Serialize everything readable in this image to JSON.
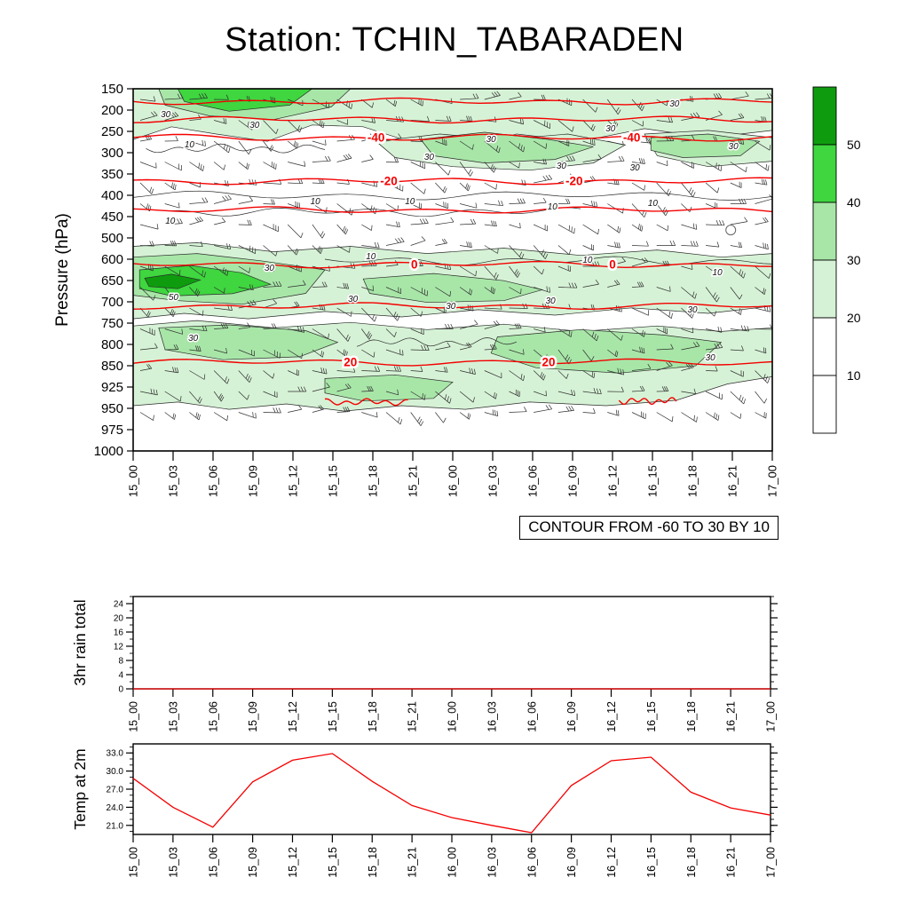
{
  "chart_data": [
    {
      "type": "heatmap",
      "title": "Station: TCHIN_TABARADEN",
      "ylabel": "Pressure (hPa)",
      "xlabel": "",
      "y_ticklabels": [
        "150",
        "200",
        "250",
        "300",
        "350",
        "400",
        "450",
        "500",
        "600",
        "650",
        "700",
        "750",
        "800",
        "850",
        "925",
        "950",
        "975",
        "1000"
      ],
      "x_ticklabels": [
        "15_00",
        "15_03",
        "15_06",
        "15_09",
        "15_12",
        "15_15",
        "15_18",
        "15_21",
        "16_00",
        "16_03",
        "16_06",
        "16_09",
        "16_12",
        "16_15",
        "16_18",
        "16_21",
        "17_00"
      ],
      "contour_note": "CONTOUR FROM -60 TO 30 BY 10",
      "red_color": "#f40000",
      "fill_levels": [
        10,
        20,
        30,
        40,
        50
      ],
      "fill_colors": {
        "20": "#d6f2d6",
        "30": "#a8e6a8",
        "40": "#3fd63f",
        "50": "#0e9c0e"
      },
      "colorbar": {
        "labels": [
          "50",
          "40",
          "30",
          "20",
          "10"
        ],
        "colors_top_to_bottom": [
          "#0e9c0e",
          "#3fd63f",
          "#a8e6a8",
          "#d6f2d6",
          "#ffffff",
          "#ffffff"
        ]
      },
      "wind_barbs": true,
      "circle_marker": {
        "u": 0.935,
        "v": 0.39
      },
      "shaded_regions": [
        {
          "level": "20",
          "pts": [
            [
              0,
              0
            ],
            [
              1,
              0
            ],
            [
              1,
              0.115
            ],
            [
              0.9,
              0.135
            ],
            [
              0.8,
              0.11
            ],
            [
              0.7,
              0.145
            ],
            [
              0.6,
              0.125
            ],
            [
              0.52,
              0.165
            ],
            [
              0.44,
              0.15
            ],
            [
              0.36,
              0.105
            ],
            [
              0.28,
              0.1
            ],
            [
              0.21,
              0.145
            ],
            [
              0.13,
              0.125
            ],
            [
              0.06,
              0.105
            ],
            [
              0,
              0.14
            ]
          ]
        },
        {
          "level": "20",
          "pts": [
            [
              0.38,
              0.145
            ],
            [
              0.48,
              0.125
            ],
            [
              0.58,
              0.14
            ],
            [
              0.68,
              0.125
            ],
            [
              0.77,
              0.155
            ],
            [
              0.72,
              0.205
            ],
            [
              0.62,
              0.225
            ],
            [
              0.5,
              0.215
            ],
            [
              0.41,
              0.19
            ]
          ]
        },
        {
          "level": "20",
          "pts": [
            [
              0.8,
              0.125
            ],
            [
              0.9,
              0.115
            ],
            [
              1,
              0.135
            ],
            [
              1,
              0.2
            ],
            [
              0.9,
              0.215
            ],
            [
              0.82,
              0.185
            ]
          ]
        },
        {
          "level": "20",
          "pts": [
            [
              0,
              0.435
            ],
            [
              0.1,
              0.425
            ],
            [
              0.22,
              0.45
            ],
            [
              0.34,
              0.435
            ],
            [
              0.46,
              0.455
            ],
            [
              0.58,
              0.44
            ],
            [
              0.7,
              0.46
            ],
            [
              0.82,
              0.445
            ],
            [
              0.92,
              0.465
            ],
            [
              1,
              0.455
            ],
            [
              1,
              0.6
            ],
            [
              0.9,
              0.62
            ],
            [
              0.78,
              0.605
            ],
            [
              0.66,
              0.625
            ],
            [
              0.54,
              0.61
            ],
            [
              0.42,
              0.63
            ],
            [
              0.3,
              0.615
            ],
            [
              0.18,
              0.635
            ],
            [
              0.08,
              0.62
            ],
            [
              0,
              0.635
            ]
          ]
        },
        {
          "level": "20",
          "pts": [
            [
              0,
              0.655
            ],
            [
              0.1,
              0.64
            ],
            [
              0.22,
              0.66
            ],
            [
              0.34,
              0.645
            ],
            [
              0.46,
              0.665
            ],
            [
              0.58,
              0.65
            ],
            [
              0.7,
              0.67
            ],
            [
              0.82,
              0.655
            ],
            [
              0.92,
              0.67
            ],
            [
              1,
              0.66
            ],
            [
              1,
              0.795
            ],
            [
              0.93,
              0.815
            ],
            [
              0.85,
              0.86
            ],
            [
              0.74,
              0.875
            ],
            [
              0.62,
              0.865
            ],
            [
              0.52,
              0.885
            ],
            [
              0.42,
              0.875
            ],
            [
              0.33,
              0.89
            ],
            [
              0.24,
              0.87
            ],
            [
              0.15,
              0.885
            ],
            [
              0.07,
              0.865
            ],
            [
              0,
              0.875
            ]
          ]
        },
        {
          "level": "30",
          "pts": [
            [
              0.04,
              0
            ],
            [
              0.34,
              0
            ],
            [
              0.31,
              0.05
            ],
            [
              0.22,
              0.085
            ],
            [
              0.12,
              0.075
            ],
            [
              0.05,
              0.045
            ]
          ]
        },
        {
          "level": "30",
          "pts": [
            [
              0.45,
              0.14
            ],
            [
              0.55,
              0.12
            ],
            [
              0.65,
              0.14
            ],
            [
              0.72,
              0.16
            ],
            [
              0.66,
              0.195
            ],
            [
              0.55,
              0.205
            ],
            [
              0.47,
              0.185
            ]
          ]
        },
        {
          "level": "30",
          "pts": [
            [
              0.81,
              0.135
            ],
            [
              0.9,
              0.125
            ],
            [
              0.98,
              0.145
            ],
            [
              0.95,
              0.185
            ],
            [
              0.86,
              0.19
            ],
            [
              0.81,
              0.17
            ]
          ]
        },
        {
          "level": "30",
          "pts": [
            [
              0,
              0.465
            ],
            [
              0.1,
              0.455
            ],
            [
              0.2,
              0.475
            ],
            [
              0.3,
              0.5
            ],
            [
              0.27,
              0.565
            ],
            [
              0.17,
              0.595
            ],
            [
              0.07,
              0.585
            ],
            [
              0,
              0.57
            ]
          ]
        },
        {
          "level": "30",
          "pts": [
            [
              0.36,
              0.525
            ],
            [
              0.47,
              0.51
            ],
            [
              0.58,
              0.53
            ],
            [
              0.64,
              0.555
            ],
            [
              0.58,
              0.585
            ],
            [
              0.46,
              0.59
            ],
            [
              0.37,
              0.565
            ]
          ]
        },
        {
          "level": "30",
          "pts": [
            [
              0.57,
              0.685
            ],
            [
              0.7,
              0.665
            ],
            [
              0.83,
              0.68
            ],
            [
              0.92,
              0.7
            ],
            [
              0.88,
              0.765
            ],
            [
              0.76,
              0.785
            ],
            [
              0.63,
              0.77
            ],
            [
              0.56,
              0.73
            ]
          ]
        },
        {
          "level": "30",
          "pts": [
            [
              0.04,
              0.66
            ],
            [
              0.15,
              0.652
            ],
            [
              0.27,
              0.668
            ],
            [
              0.32,
              0.7
            ],
            [
              0.26,
              0.74
            ],
            [
              0.14,
              0.748
            ],
            [
              0.05,
              0.72
            ]
          ]
        },
        {
          "level": "30",
          "pts": [
            [
              0.3,
              0.8
            ],
            [
              0.41,
              0.79
            ],
            [
              0.5,
              0.81
            ],
            [
              0.47,
              0.855
            ],
            [
              0.36,
              0.862
            ],
            [
              0.3,
              0.84
            ]
          ]
        },
        {
          "level": "40",
          "pts": [
            [
              0.07,
              0
            ],
            [
              0.28,
              0
            ],
            [
              0.245,
              0.045
            ],
            [
              0.15,
              0.062
            ],
            [
              0.08,
              0.035
            ]
          ]
        },
        {
          "level": "40",
          "pts": [
            [
              0.01,
              0.5
            ],
            [
              0.09,
              0.488
            ],
            [
              0.17,
              0.508
            ],
            [
              0.215,
              0.54
            ],
            [
              0.155,
              0.566
            ],
            [
              0.06,
              0.572
            ],
            [
              0.01,
              0.552
            ]
          ]
        },
        {
          "level": "50",
          "pts": [
            [
              0.018,
              0.523
            ],
            [
              0.06,
              0.512
            ],
            [
              0.105,
              0.528
            ],
            [
              0.07,
              0.552
            ],
            [
              0.025,
              0.546
            ]
          ]
        }
      ],
      "thin_contours": [
        {
          "v": 0.165,
          "u0": 0.02,
          "u1": 0.3
        },
        {
          "v": 0.295,
          "u0": 0,
          "u1": 1
        },
        {
          "v": 0.34,
          "u0": 0.06,
          "u1": 0.7
        },
        {
          "v": 0.475,
          "u0": 0.3,
          "u1": 1
        },
        {
          "v": 0.7,
          "u0": 0.35,
          "u1": 0.6
        }
      ],
      "red_lines": [
        {
          "v": 0.035,
          "u0": 0,
          "u1": 1,
          "labels": []
        },
        {
          "v": 0.085,
          "u0": 0,
          "u1": 1,
          "labels": []
        },
        {
          "v": 0.135,
          "u0": 0,
          "u1": 1,
          "labels": [
            {
              "u": 0.38,
              "text": "-40"
            },
            {
              "u": 0.78,
              "text": "-40"
            }
          ]
        },
        {
          "v": 0.255,
          "u0": 0,
          "u1": 1,
          "labels": [
            {
              "u": 0.4,
              "text": "-20"
            },
            {
              "u": 0.69,
              "text": "-20"
            }
          ]
        },
        {
          "v": 0.335,
          "u0": 0,
          "u1": 1,
          "labels": []
        },
        {
          "v": 0.485,
          "u0": 0,
          "u1": 1,
          "labels": [
            {
              "u": 0.44,
              "text": "0"
            },
            {
              "u": 0.75,
              "text": "0"
            }
          ]
        },
        {
          "v": 0.6,
          "u0": 0,
          "u1": 1,
          "labels": []
        },
        {
          "v": 0.755,
          "u0": 0,
          "u1": 1,
          "labels": [
            {
              "u": 0.34,
              "text": "20"
            },
            {
              "u": 0.65,
              "text": "20"
            }
          ]
        },
        {
          "v": 0.865,
          "u0": 0.3,
          "u1": 0.43,
          "labels": []
        },
        {
          "v": 0.862,
          "u0": 0.76,
          "u1": 0.85,
          "labels": []
        }
      ],
      "contour_labels": [
        {
          "text": "30",
          "u": 0.051,
          "v": 0.078
        },
        {
          "text": "30",
          "u": 0.19,
          "v": 0.108
        },
        {
          "text": "30",
          "u": 0.56,
          "v": 0.147
        },
        {
          "text": "30",
          "u": 0.747,
          "v": 0.118
        },
        {
          "text": "30",
          "u": 0.847,
          "v": 0.049
        },
        {
          "text": "30",
          "u": 0.939,
          "v": 0.167
        },
        {
          "text": "10",
          "u": 0.088,
          "v": 0.162
        },
        {
          "text": "30",
          "u": 0.463,
          "v": 0.196
        },
        {
          "text": "30",
          "u": 0.67,
          "v": 0.221
        },
        {
          "text": "30",
          "u": 0.785,
          "v": 0.225
        },
        {
          "text": "10",
          "u": 0.285,
          "v": 0.319
        },
        {
          "text": "10",
          "u": 0.433,
          "v": 0.319
        },
        {
          "text": "10",
          "u": 0.656,
          "v": 0.333
        },
        {
          "text": "10",
          "u": 0.813,
          "v": 0.324
        },
        {
          "text": "10",
          "u": 0.058,
          "v": 0.373
        },
        {
          "text": "10",
          "u": 0.372,
          "v": 0.471
        },
        {
          "text": "10",
          "u": 0.711,
          "v": 0.48
        },
        {
          "text": "10",
          "u": 0.914,
          "v": 0.515
        },
        {
          "text": "30",
          "u": 0.213,
          "v": 0.502
        },
        {
          "text": "50",
          "u": 0.063,
          "v": 0.583
        },
        {
          "text": "30",
          "u": 0.344,
          "v": 0.588
        },
        {
          "text": "30",
          "u": 0.497,
          "v": 0.608
        },
        {
          "text": "30",
          "u": 0.653,
          "v": 0.593
        },
        {
          "text": "30",
          "u": 0.875,
          "v": 0.618
        },
        {
          "text": "30",
          "u": 0.094,
          "v": 0.696
        },
        {
          "text": "30",
          "u": 0.903,
          "v": 0.75
        }
      ]
    },
    {
      "type": "line",
      "ylabel": "3hr rain total",
      "x_ticklabels": [
        "15_00",
        "15_03",
        "15_06",
        "15_09",
        "15_12",
        "15_15",
        "15_18",
        "15_21",
        "16_00",
        "16_03",
        "16_06",
        "16_09",
        "16_12",
        "16_15",
        "16_18",
        "16_21",
        "17_00"
      ],
      "values": [
        0,
        0,
        0,
        0,
        0,
        0,
        0,
        0,
        0,
        0,
        0,
        0,
        0,
        0,
        0,
        0,
        0
      ],
      "ylim": [
        0,
        26
      ],
      "yticks": [
        0,
        4,
        8,
        12,
        16,
        20,
        24
      ],
      "line_color": "#f40000"
    },
    {
      "type": "line",
      "ylabel": "Temp at 2m",
      "x_ticklabels": [
        "15_00",
        "15_03",
        "15_06",
        "15_09",
        "15_12",
        "15_15",
        "15_18",
        "15_21",
        "16_00",
        "16_03",
        "16_06",
        "16_09",
        "16_12",
        "16_15",
        "16_18",
        "16_21",
        "17_00"
      ],
      "values": [
        28.8,
        24.0,
        20.7,
        28.2,
        31.8,
        32.9,
        28.3,
        24.3,
        22.3,
        21.0,
        19.8,
        27.6,
        31.7,
        32.3,
        26.5,
        23.9,
        22.7
      ],
      "ylim": [
        19.5,
        34.5
      ],
      "yticks": [
        "21.0",
        "24.0",
        "27.0",
        "30.0",
        "33.0"
      ],
      "line_color": "#f40000"
    }
  ]
}
